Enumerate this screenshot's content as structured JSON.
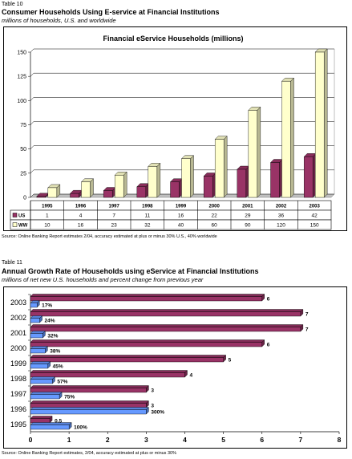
{
  "table10": {
    "label": "Table 10",
    "title": "Consumer Households Using E-service at Financial Institutions",
    "subtitle": "millions of households, U.S. and worldwide",
    "source": "Source: Online Banking Report estimates 2/04, accuracy estimated at plus or minus 30% U.S., 40% worldwide"
  },
  "table11": {
    "label": "Table 11",
    "title": "Annual Growth Rate of Households using eService at Financial Institutions",
    "subtitle": "millions of net new U.S. households and percent change from previous year",
    "source": "Source: Online Banking Report estimates, 2/04, accuracy estimated at plus or minus 30%"
  },
  "chart_data": [
    {
      "type": "bar",
      "title": "Financial eService Households (millions)",
      "categories": [
        "1995",
        "1996",
        "1997",
        "1998",
        "1999",
        "2000",
        "2001",
        "2002",
        "2003"
      ],
      "series": [
        {
          "name": "US",
          "values": [
            1,
            4,
            7,
            11,
            16,
            22,
            29,
            36,
            42
          ],
          "color": "#993366"
        },
        {
          "name": "WW",
          "values": [
            10,
            16,
            23,
            32,
            40,
            60,
            90,
            120,
            150
          ],
          "color": "#ffffcc"
        }
      ],
      "table_rows": [
        {
          "label": "US",
          "values": [
            "1",
            "4",
            "7",
            "11",
            "16",
            "22",
            "29",
            "36",
            "42"
          ]
        },
        {
          "label": "WW",
          "values": [
            "10",
            "16",
            "23",
            "32",
            "40",
            "60",
            "90",
            "120",
            "150"
          ]
        }
      ],
      "ylim": [
        0,
        150
      ],
      "yticks": [
        0,
        25,
        50,
        75,
        100,
        125,
        150
      ],
      "grid": true,
      "legend": "data table"
    },
    {
      "type": "bar",
      "orientation": "horizontal",
      "categories": [
        "2003",
        "2002",
        "2001",
        "2000",
        "1999",
        "1998",
        "1997",
        "1996",
        "1995"
      ],
      "series": [
        {
          "name": "net new US households (millions)",
          "values": [
            6,
            7,
            7,
            6,
            5,
            4,
            3,
            3,
            0.5
          ],
          "labels": [
            "6",
            "7",
            "7",
            "6",
            "5",
            "4",
            "3",
            "3",
            "0.5"
          ],
          "color": "#993366"
        },
        {
          "name": "percent change from previous year",
          "values": [
            0.17,
            0.24,
            0.32,
            0.38,
            0.45,
            0.57,
            0.75,
            3.0,
            1.0
          ],
          "labels": [
            "17%",
            "24%",
            "32%",
            "38%",
            "45%",
            "57%",
            "75%",
            "300%",
            "100%"
          ],
          "color": "#6699ff"
        }
      ],
      "xlim": [
        0,
        8
      ],
      "xticks": [
        0,
        1,
        2,
        3,
        4,
        5,
        6,
        7,
        8
      ],
      "grid": false
    }
  ]
}
